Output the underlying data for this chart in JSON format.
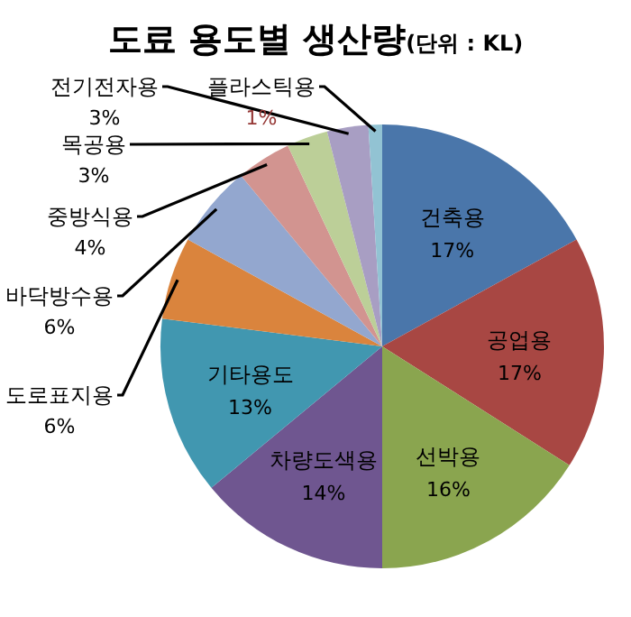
{
  "chart_data": {
    "type": "pie",
    "title": "도료 용도별 생산량",
    "subtitle": "(단위 : KL)",
    "categories": [
      "건축용",
      "공업용",
      "선박용",
      "차량도색용",
      "기타용도",
      "도로표지용",
      "바닥방수용",
      "중방식용",
      "목공용",
      "전기전자용",
      "플라스틱용"
    ],
    "values": [
      17,
      17,
      16,
      14,
      13,
      6,
      6,
      4,
      3,
      3,
      1
    ],
    "colors": [
      "#4a76aa",
      "#a84743",
      "#8aa54f",
      "#6f5690",
      "#4197b0",
      "#da843d",
      "#93a7cf",
      "#d29490",
      "#bccf98",
      "#a89ec3",
      "#92c3d3"
    ],
    "value_labels": [
      "17%",
      "17%",
      "16%",
      "14%",
      "13%",
      "6%",
      "6%",
      "4%",
      "3%",
      "3%",
      "1%"
    ]
  }
}
